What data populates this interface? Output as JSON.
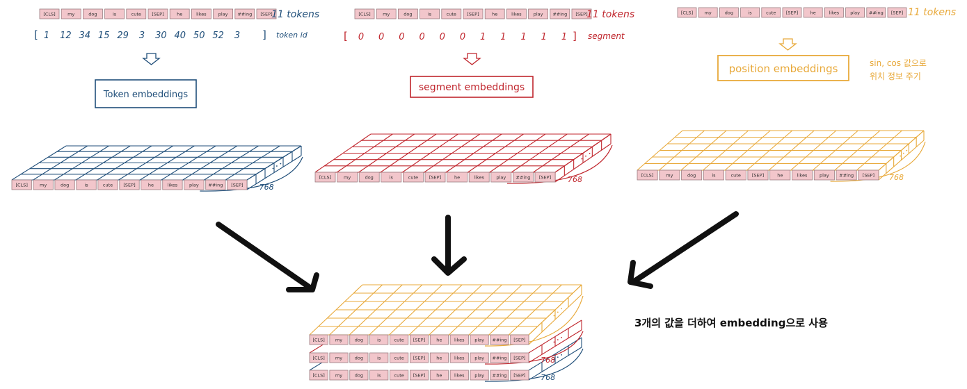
{
  "tokens": [
    "[CLS]",
    "my",
    "dog",
    "is",
    "cute",
    "[SEP]",
    "he",
    "likes",
    "play",
    "##ing",
    "[SEP]"
  ],
  "colors": {
    "token": "#1f4e79",
    "segment": "#c0262d",
    "position": "#e8a93a",
    "arrow": "#111111",
    "token_fill": "#f2c6cb"
  },
  "panels": {
    "token": {
      "count_label": "11 tokens",
      "ids": [
        "1",
        "12",
        "34",
        "15",
        "29",
        "3",
        "30",
        "40",
        "50",
        "52",
        "3"
      ],
      "bracket_open": "[",
      "bracket_close": "]",
      "ids_label": "token id",
      "box_label": "Token embeddings",
      "dim_label": "768"
    },
    "segment": {
      "count_label": "11 tokens",
      "ids": [
        "0",
        "0",
        "0",
        "0",
        "0",
        "0",
        "1",
        "1",
        "1",
        "1",
        "1"
      ],
      "bracket_open": "[",
      "bracket_close": "]",
      "ids_label": "segment",
      "box_label": "segment embeddings",
      "dim_label": "768"
    },
    "position": {
      "count_label": "11 tokens",
      "box_label": "position embeddings",
      "note_line1": "sin, cos 값으로",
      "note_line2": "위치 정보 주기",
      "dim_label": "768"
    }
  },
  "combined": {
    "caption": "3개의 값을 더하여 embedding으로 사용",
    "dim_label": "768"
  }
}
